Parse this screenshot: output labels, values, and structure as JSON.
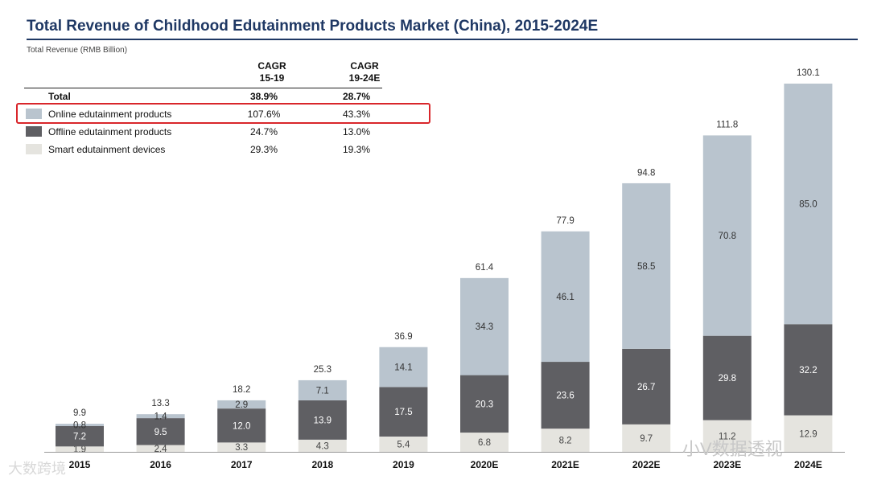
{
  "title": "Total Revenue of Childhood Edutainment Products Market (China), 2015-2024E",
  "subtitle": "Total Revenue (RMB Billion)",
  "table": {
    "headers": [
      "CAGR\n15-19",
      "CAGR\n19-24E"
    ],
    "header1_line1": "CAGR",
    "header1_line2": "15-19",
    "header2_line1": "CAGR",
    "header2_line2": "19-24E",
    "total": {
      "label": "Total",
      "c1": "38.9%",
      "c2": "28.7%"
    },
    "rows": [
      {
        "label": "Online edutainment products",
        "c1": "107.6%",
        "c2": "43.3%",
        "color": "#b9c4ce"
      },
      {
        "label": "Offline edutainment products",
        "c1": "24.7%",
        "c2": "13.0%",
        "color": "#5f5f63"
      },
      {
        "label": "Smart edutainment devices",
        "c1": "29.3%",
        "c2": "19.3%",
        "color": "#e5e4df"
      }
    ]
  },
  "watermarks": {
    "left": "大数跨境",
    "right": "小V数据透视"
  },
  "chart_data": {
    "type": "bar",
    "stacked": true,
    "categories": [
      "2015",
      "2016",
      "2017",
      "2018",
      "2019",
      "2020E",
      "2021E",
      "2022E",
      "2023E",
      "2024E"
    ],
    "series": [
      {
        "name": "Smart edutainment devices",
        "color": "#e5e4df",
        "values": [
          1.9,
          2.4,
          3.3,
          4.3,
          5.4,
          6.8,
          8.2,
          9.7,
          11.2,
          12.9
        ]
      },
      {
        "name": "Offline edutainment products",
        "color": "#5f5f63",
        "values": [
          7.2,
          9.5,
          12.0,
          13.9,
          17.5,
          20.3,
          23.6,
          26.7,
          29.8,
          32.2
        ]
      },
      {
        "name": "Online edutainment products",
        "color": "#b9c4ce",
        "values": [
          0.8,
          1.4,
          2.9,
          7.1,
          14.1,
          34.3,
          46.1,
          58.5,
          70.8,
          85.0
        ]
      }
    ],
    "totals": [
      9.9,
      13.3,
      18.2,
      25.3,
      36.9,
      61.4,
      77.9,
      94.8,
      111.8,
      130.1
    ],
    "ylim": [
      0,
      130.1
    ],
    "legend": "table top-left",
    "grid": false
  }
}
